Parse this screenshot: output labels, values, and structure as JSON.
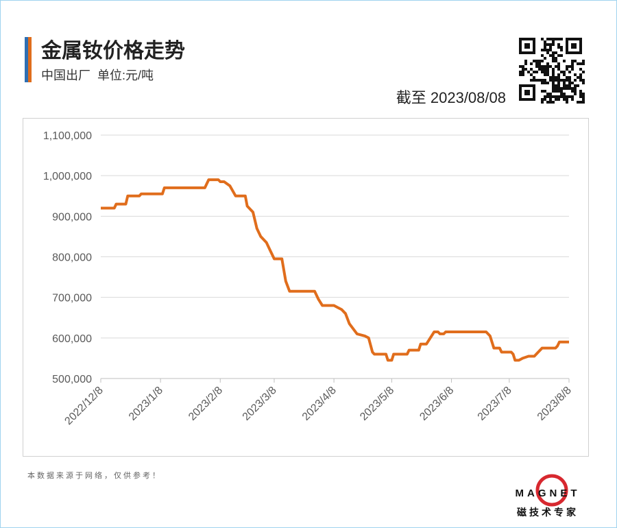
{
  "header": {
    "title": "金属钕价格走势",
    "subtitle": "中国出厂  单位:元/吨",
    "as_of": "截至 2023/08/08"
  },
  "chart_data": {
    "type": "line",
    "x": [
      "2022/12/8",
      "2022/12/15",
      "2022/12/16",
      "2022/12/21",
      "2022/12/22",
      "2022/12/28",
      "2022/12/29",
      "2023/1/9",
      "2023/1/10",
      "2023/1/31",
      "2023/2/2",
      "2023/2/7",
      "2023/2/8",
      "2023/2/10",
      "2023/2/13",
      "2023/2/16",
      "2023/2/21",
      "2023/2/22",
      "2023/2/25",
      "2023/2/27",
      "2023/3/1",
      "2023/3/4",
      "2023/3/6",
      "2023/3/8",
      "2023/3/12",
      "2023/3/14",
      "2023/3/16",
      "2023/3/29",
      "2023/3/31",
      "2023/4/2",
      "2023/4/8",
      "2023/4/10",
      "2023/4/12",
      "2023/4/14",
      "2023/4/16",
      "2023/4/20",
      "2023/4/24",
      "2023/4/26",
      "2023/4/28",
      "2023/4/29",
      "2023/5/5",
      "2023/5/6",
      "2023/5/8",
      "2023/5/9",
      "2023/5/16",
      "2023/5/17",
      "2023/5/22",
      "2023/5/23",
      "2023/5/26",
      "2023/5/30",
      "2023/6/1",
      "2023/6/2",
      "2023/6/4",
      "2023/6/5",
      "2023/6/26",
      "2023/6/28",
      "2023/6/30",
      "2023/7/3",
      "2023/7/4",
      "2023/7/9",
      "2023/7/10",
      "2023/7/11",
      "2023/7/13",
      "2023/7/15",
      "2023/7/18",
      "2023/7/21",
      "2023/7/25",
      "2023/8/1",
      "2023/8/2",
      "2023/8/3",
      "2023/8/8"
    ],
    "series": [
      {
        "color": "#e06d1c",
        "values": [
          920000,
          920000,
          930000,
          930000,
          950000,
          950000,
          955000,
          955000,
          970000,
          970000,
          990000,
          990000,
          985000,
          985000,
          975000,
          950000,
          950000,
          925000,
          910000,
          870000,
          850000,
          835000,
          815000,
          795000,
          795000,
          740000,
          715000,
          715000,
          695000,
          680000,
          680000,
          675000,
          670000,
          660000,
          635000,
          610000,
          605000,
          600000,
          565000,
          560000,
          560000,
          545000,
          545000,
          560000,
          560000,
          570000,
          570000,
          585000,
          585000,
          615000,
          615000,
          610000,
          610000,
          615000,
          615000,
          605000,
          575000,
          575000,
          565000,
          565000,
          560000,
          545000,
          545000,
          550000,
          555000,
          555000,
          575000,
          575000,
          580000,
          590000,
          590000
        ]
      }
    ],
    "xlim": [
      "2022/12/8",
      "2023/8/8"
    ],
    "xticks": [
      "2022/12/8",
      "2023/1/8",
      "2023/2/8",
      "2023/3/8",
      "2023/4/8",
      "2023/5/8",
      "2023/6/8",
      "2023/7/8",
      "2023/8/8"
    ],
    "ylim": [
      500000,
      1100000
    ],
    "yticks": [
      {
        "value": 500000,
        "label": "500,000"
      },
      {
        "value": 600000,
        "label": "600,000"
      },
      {
        "value": 700000,
        "label": "700,000"
      },
      {
        "value": 800000,
        "label": "800,000"
      },
      {
        "value": 900000,
        "label": "900,000"
      },
      {
        "value": 1000000,
        "label": "1,000,000"
      },
      {
        "value": 1100000,
        "label": "1,100,000"
      }
    ],
    "grid": true
  },
  "footer": {
    "note": "本数据来源于网络，仅供参考！",
    "logo": "MAGNET",
    "slogan": "磁技术专家"
  }
}
